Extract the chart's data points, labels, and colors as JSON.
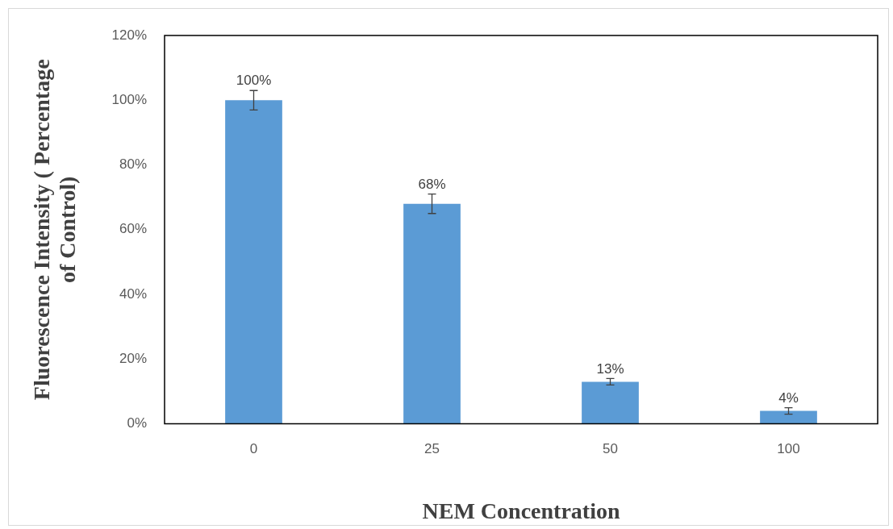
{
  "chart_data": {
    "type": "bar",
    "xlabel": "NEM Concentration",
    "ylabel": "Fluorescence Intensity ( Percentage of Control)",
    "categories": [
      "0",
      "25",
      "50",
      "100"
    ],
    "values": [
      100,
      68,
      13,
      4
    ],
    "errors": [
      3,
      3,
      1,
      1
    ],
    "value_labels": [
      "100%",
      "68%",
      "13%",
      "4%"
    ],
    "color": "#5b9bd5",
    "ylim": [
      0,
      120
    ],
    "yticks": [
      {
        "value": 0,
        "label": "0%"
      },
      {
        "value": 20,
        "label": "20%"
      },
      {
        "value": 40,
        "label": "40%"
      },
      {
        "value": 60,
        "label": "60%"
      },
      {
        "value": 80,
        "label": "80%"
      },
      {
        "value": 100,
        "label": "100%"
      },
      {
        "value": 120,
        "label": "120%"
      }
    ],
    "grid": false,
    "legend": false
  }
}
